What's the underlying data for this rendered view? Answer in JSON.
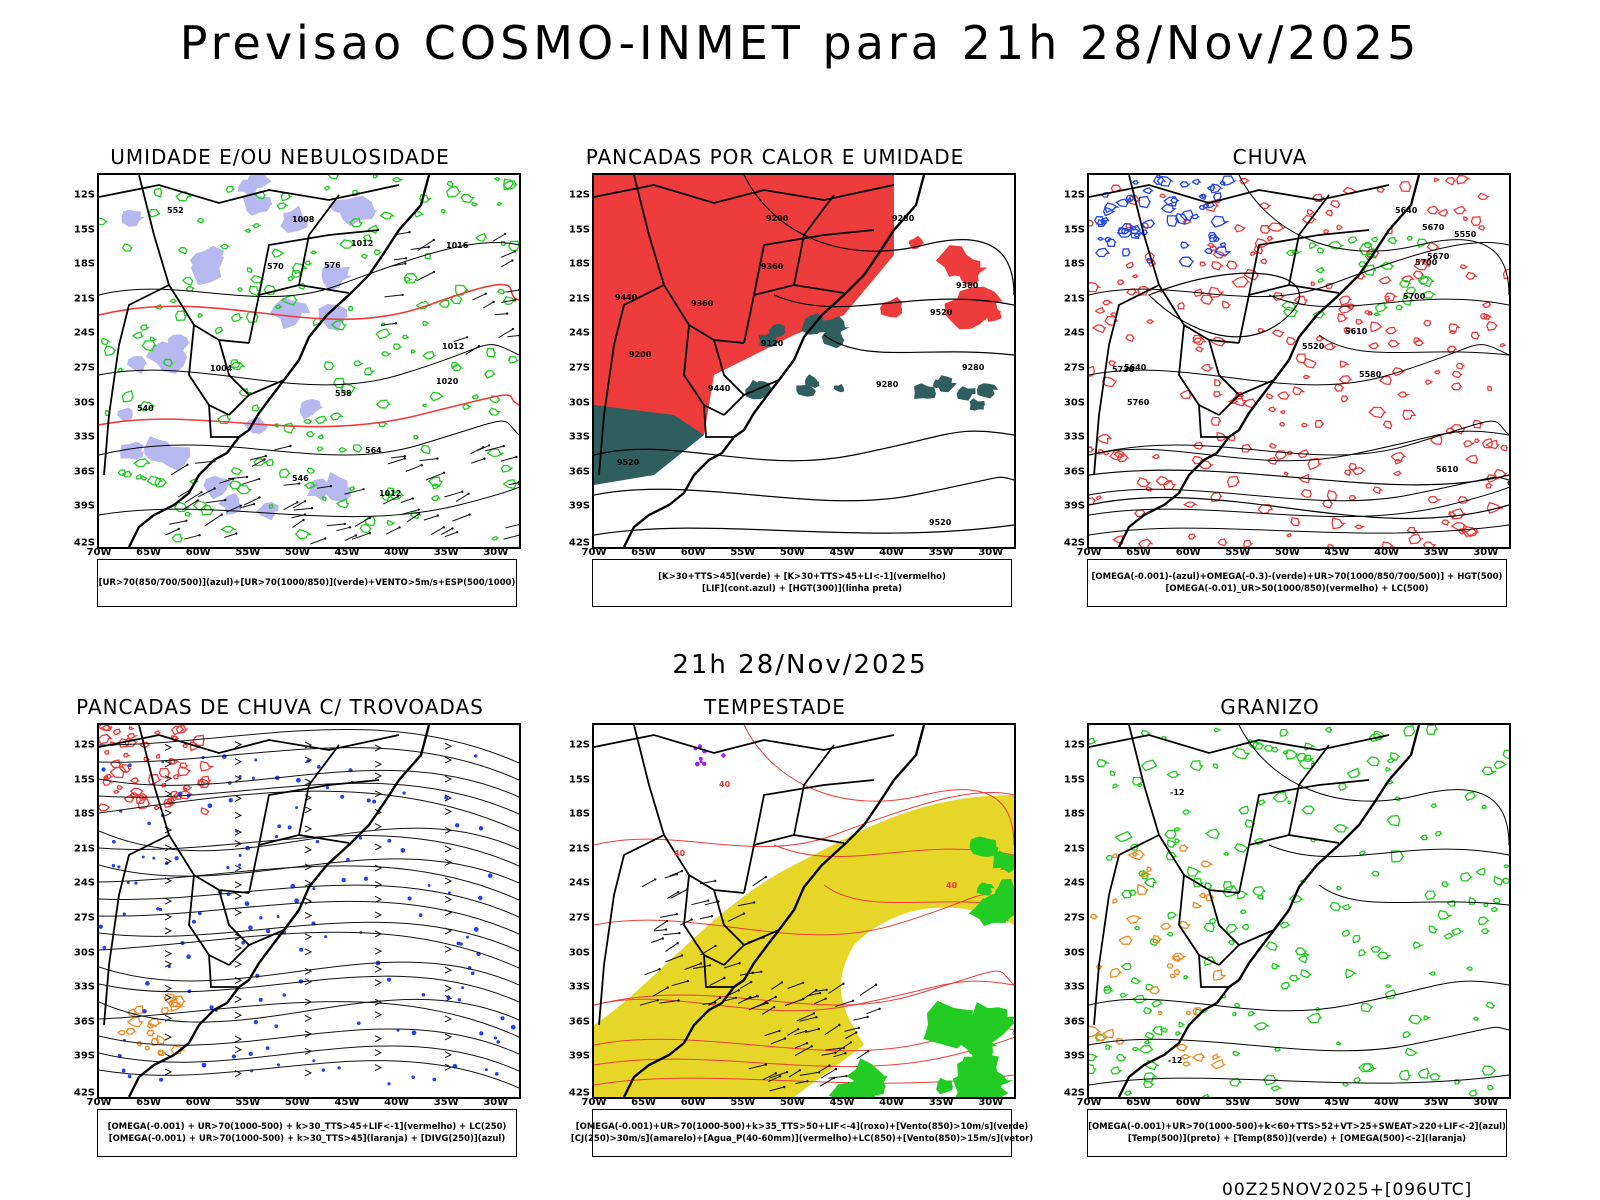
{
  "header": {
    "title": "Previsao COSMO-INMET  para 21h 28/Nov/2025",
    "mid_title": "21h 28/Nov/2025",
    "run_stamp": "00Z25NOV2025+[096UTC]"
  },
  "axes": {
    "lat_labels": [
      "12S",
      "15S",
      "18S",
      "21S",
      "24S",
      "27S",
      "30S",
      "33S",
      "36S",
      "39S",
      "42S"
    ],
    "lon_labels": [
      "70W",
      "65W",
      "60W",
      "55W",
      "50W",
      "45W",
      "40W",
      "35W",
      "30W"
    ]
  },
  "panels": [
    {
      "title": "UMIDADE E/OU NEBULOSIDADE",
      "legend": [
        "[UR>70(850/700/500)](azul)+[UR>70(1000/850)](verde)+VENTO>5m/s+ESP(500/1000)"
      ],
      "contour_labels": [
        "1012",
        "1008",
        "1004",
        "1012",
        "1012",
        "1016",
        "1020",
        "576",
        "570",
        "564",
        "558",
        "552",
        "546",
        "540"
      ]
    },
    {
      "title": "PANCADAS POR CALOR E UMIDADE",
      "legend": [
        "[K>30+TTS>45](verde) + [K>30+TTS>45+LI<-1](vermelho)",
        "[LIF](cont.azul) + [HGT(300)](linha preta)"
      ],
      "contour_labels": [
        "9520",
        "9520",
        "9520",
        "9440",
        "9380",
        "9280",
        "9440",
        "9360",
        "9360",
        "9280",
        "9200",
        "9200",
        "9120",
        "9280"
      ]
    },
    {
      "title": "CHUVA",
      "legend": [
        "[OMEGA(-0.001)-(azul)+OMEGA(-0.3)-(verde)+UR>70(1000/850/700/500)] + HGT(500)",
        "[OMEGA(-0.01)_UR>50(1000/850)(vermelho) + LC(500)"
      ],
      "contour_labels": [
        "5730",
        "5760",
        "5700",
        "5670",
        "5640",
        "5610",
        "5580",
        "5550",
        "5520",
        "5700",
        "5670",
        "5640",
        "5610"
      ]
    },
    {
      "title": "PANCADAS DE CHUVA C/ TROVOADAS",
      "legend": [
        "[OMEGA(-0.001) + UR>70(1000-500) + k>30_TTS>45+LIF<-1](vermelho) + LC(250)",
        "[OMEGA(-0.001) + UR>70(1000-500) + k>30_TTS>45](laranja) + [DIVG(250)](azul)"
      ],
      "contour_labels": []
    },
    {
      "title": "TEMPESTADE",
      "legend": [
        "[OMEGA(-0.001)+UR>70(1000-500)+k>35_TTS>50+LIF<-4](roxo)+[Vento(850)>10m/s](verde)",
        "[CJ(250)>30m/s](amarelo)+[Agua_P(40-60mm)](vermelho)+LC(850)+[Vento(850)>15m/s](vetor)"
      ],
      "contour_labels": [
        "40",
        "40",
        "40"
      ]
    },
    {
      "title": "GRANIZO",
      "legend": [
        "[OMEGA(-0.001)+UR>70(1000-500)+k<60+TTS>52+VT>25+SWEAT>220+LIF<-2](azul)",
        "[Temp(500)](preto) + [Temp(850)](verde) + [OMEGA(500)<-2](laranja)"
      ],
      "contour_labels": [
        "-12",
        "-12"
      ]
    }
  ],
  "colors": {
    "red": "#ee3b3b",
    "green": "#22cc22",
    "blue": "#2244ee",
    "lavender": "#b8b8f0",
    "teal": "#2e5e5e",
    "yellow": "#e6d627",
    "orange": "#f08a24",
    "purple": "#a020f0"
  }
}
